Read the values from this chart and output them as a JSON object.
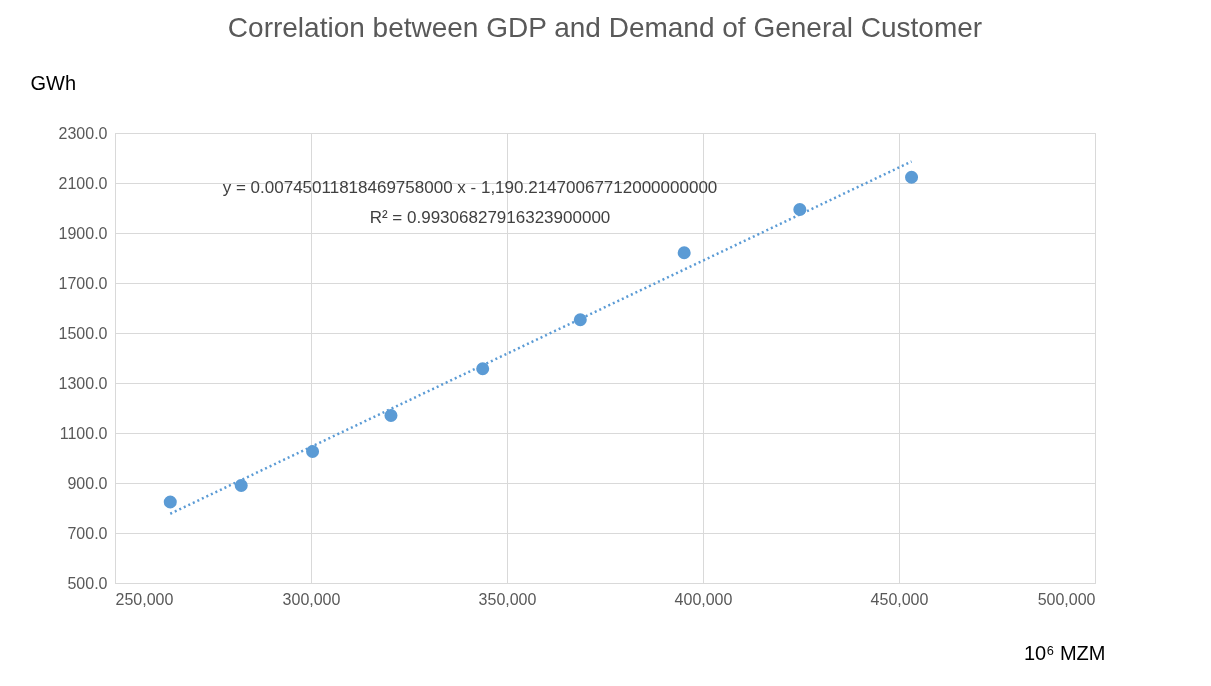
{
  "chart_data": {
    "type": "scatter",
    "title": "Correlation between GDP and Demand of General Customer",
    "xlabel": "10⁶ MZM",
    "ylabel": "GWh",
    "series": [
      {
        "color": "#5b9bd5",
        "marker": "circle",
        "x": [
          264100,
          282200,
          300400,
          320400,
          343800,
          368700,
          395200,
          424700,
          453200
        ],
        "values": [
          824,
          890,
          1026,
          1170,
          1357,
          1553,
          1821,
          1994,
          2123
        ]
      },
      {
        "type": "line",
        "color": "#5b9bd5",
        "line_style": "dotted",
        "x": [
          264100,
          453200
        ],
        "values": [
          777,
          2186
        ]
      }
    ],
    "annotations": [
      "y = 0.00745011818469758000 x - 1,190.21470067712000000000",
      "R² = 0.99306827916323900000"
    ],
    "xlim": [
      250000,
      500000
    ],
    "xticks": [
      {
        "value": 250000,
        "label": "250,000"
      },
      {
        "value": 300000,
        "label": "300,000"
      },
      {
        "value": 350000,
        "label": "350,000"
      },
      {
        "value": 400000,
        "label": "400,000"
      },
      {
        "value": 450000,
        "label": "450,000"
      },
      {
        "value": 500000,
        "label": "500,000"
      }
    ],
    "ylim": [
      500,
      2300
    ],
    "yticks": [
      {
        "value": 500,
        "label": "500.0"
      },
      {
        "value": 700,
        "label": "700.0"
      },
      {
        "value": 900,
        "label": "900.0"
      },
      {
        "value": 1100,
        "label": "1100.0"
      },
      {
        "value": 1300,
        "label": "1300.0"
      },
      {
        "value": 1500,
        "label": "1500.0"
      },
      {
        "value": 1700,
        "label": "1700.0"
      },
      {
        "value": 1900,
        "label": "1900.0"
      },
      {
        "value": 2100,
        "label": "2100.0"
      },
      {
        "value": 2300,
        "label": "2300.0"
      }
    ],
    "grid": true
  }
}
